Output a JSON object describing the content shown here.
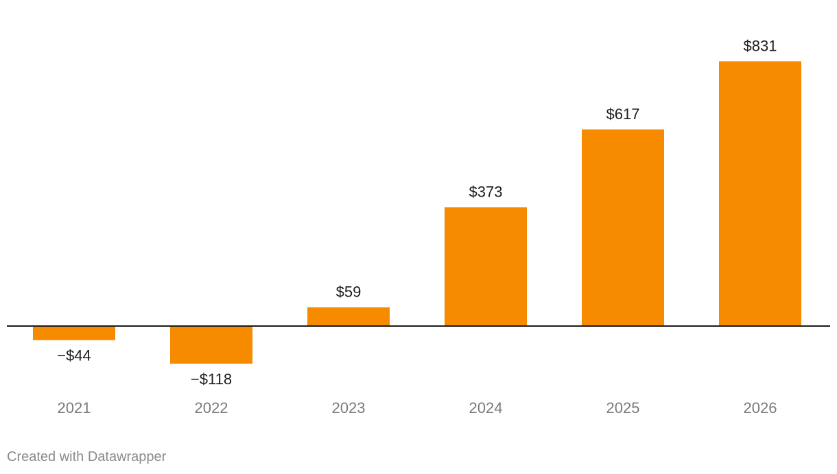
{
  "chart_data": {
    "type": "bar",
    "title": "",
    "xlabel": "",
    "ylabel": "",
    "categories": [
      "2021",
      "2022",
      "2023",
      "2024",
      "2025",
      "2026"
    ],
    "values": [
      -44,
      -118,
      59,
      373,
      617,
      831
    ],
    "value_labels": [
      "−$44",
      "−$118",
      "$59",
      "$373",
      "$617",
      "$831"
    ],
    "ylim": [
      -205,
      1035
    ],
    "grid": false,
    "legend": "none"
  },
  "colors": {
    "bar": "#f78b00",
    "baseline": "#1a1a1a"
  },
  "footer": {
    "credit": "Created with Datawrapper"
  }
}
